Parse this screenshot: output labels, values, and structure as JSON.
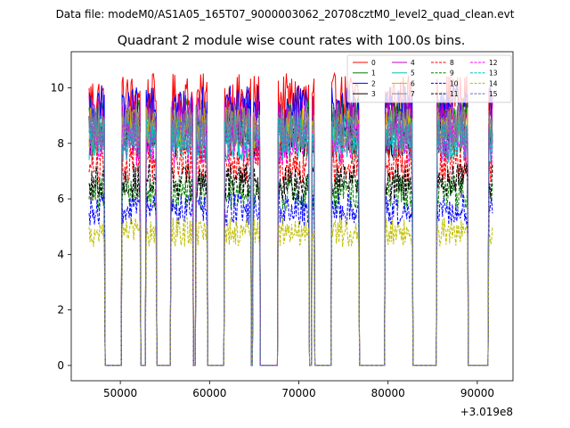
{
  "header": {
    "suptitle": "Data file: modeM0/AS1A05_165T07_9000003062_20708cztM0_level2_quad_clean.evt"
  },
  "chart_data": {
    "type": "line",
    "title": "Quadrant 2 module wise count rates with 100.0s bins.",
    "xlabel": "",
    "ylabel": "",
    "x_offset_label": "+3.019e8",
    "x_offset": 301900000,
    "xlim": [
      44500,
      94000
    ],
    "ylim": [
      -0.55,
      11.3
    ],
    "x_ticks": [
      50000,
      60000,
      70000,
      80000,
      90000
    ],
    "x_tick_labels": [
      "50000",
      "60000",
      "70000",
      "80000",
      "90000"
    ],
    "y_ticks": [
      0,
      2,
      4,
      6,
      8,
      10
    ],
    "y_tick_labels": [
      "0",
      "2",
      "4",
      "6",
      "8",
      "10"
    ],
    "bin_size_s": 100.0,
    "x_start": 46500,
    "x_end": 91700,
    "on_intervals": [
      [
        46500,
        48200
      ],
      [
        50200,
        52200
      ],
      [
        52900,
        54000
      ],
      [
        55700,
        58100
      ],
      [
        58500,
        59700
      ],
      [
        61700,
        64600
      ],
      [
        64900,
        65600
      ],
      [
        67700,
        71100
      ],
      [
        71500,
        71700
      ],
      [
        73700,
        76700
      ],
      [
        79700,
        82700
      ],
      [
        85500,
        88900
      ],
      [
        91300,
        91700
      ]
    ],
    "legend": {
      "location": "top-right",
      "columns": 4
    },
    "series": [
      {
        "name": "0",
        "color": "#ff0000",
        "dash": "solid",
        "level": 9.6
      },
      {
        "name": "1",
        "color": "#008000",
        "dash": "solid",
        "level": 8.8
      },
      {
        "name": "2",
        "color": "#0000ff",
        "dash": "solid",
        "level": 9.2
      },
      {
        "name": "3",
        "color": "#000000",
        "dash": "solid",
        "level": 8.3
      },
      {
        "name": "4",
        "color": "#c000c0",
        "dash": "solid",
        "level": 8.9
      },
      {
        "name": "5",
        "color": "#00bfbf",
        "dash": "solid",
        "level": 8.1
      },
      {
        "name": "6",
        "color": "#d4b000",
        "dash": "solid",
        "level": 8.5
      },
      {
        "name": "7",
        "color": "#888888",
        "dash": "solid",
        "level": 8.6
      },
      {
        "name": "8",
        "color": "#ff0000",
        "dash": "dashed",
        "level": 7.3
      },
      {
        "name": "9",
        "color": "#008000",
        "dash": "dashed",
        "level": 6.2
      },
      {
        "name": "10",
        "color": "#0000ff",
        "dash": "dashed",
        "level": 5.6
      },
      {
        "name": "11",
        "color": "#000000",
        "dash": "dashed",
        "level": 6.6
      },
      {
        "name": "12",
        "color": "#ff00ff",
        "dash": "dashed",
        "level": 8.0
      },
      {
        "name": "13",
        "color": "#00bfbf",
        "dash": "dashed",
        "level": 8.2
      },
      {
        "name": "14",
        "color": "#bfbf00",
        "dash": "dashed",
        "level": 4.8
      },
      {
        "name": "15",
        "color": "#7070b0",
        "dash": "dashed",
        "level": 8.4
      }
    ]
  }
}
